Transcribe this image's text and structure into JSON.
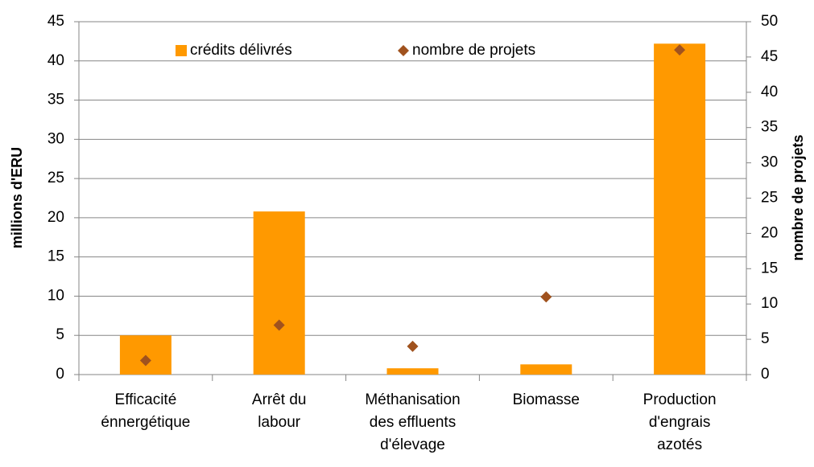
{
  "chart_data": {
    "type": "bar",
    "categories": [
      "Efficacité\nénnergétique",
      "Arrêt du\nlabour",
      "Méthanisation\ndes effluents\nd'élevage",
      "Biomasse",
      "Production\nd'engrais\nazotés"
    ],
    "series": [
      {
        "name": "crédits délivrés",
        "type": "bar",
        "color": "#ff9900",
        "values": [
          5.0,
          20.8,
          0.8,
          1.3,
          42.2
        ]
      },
      {
        "name": "nombre de projets",
        "type": "scatter",
        "axis": "y2",
        "color": "#a0521e",
        "values": [
          2,
          7,
          4,
          11,
          46
        ]
      }
    ],
    "ylabel": "millions d'ERU",
    "y2label": "nombre de projets",
    "ylim": [
      0,
      45
    ],
    "yticks": [
      0,
      5,
      10,
      15,
      20,
      25,
      30,
      35,
      40,
      45
    ],
    "y2lim": [
      0,
      50
    ],
    "y2ticks": [
      0,
      5,
      10,
      15,
      20,
      25,
      30,
      35,
      40,
      45,
      50
    ],
    "grid": true,
    "legend": "top"
  }
}
